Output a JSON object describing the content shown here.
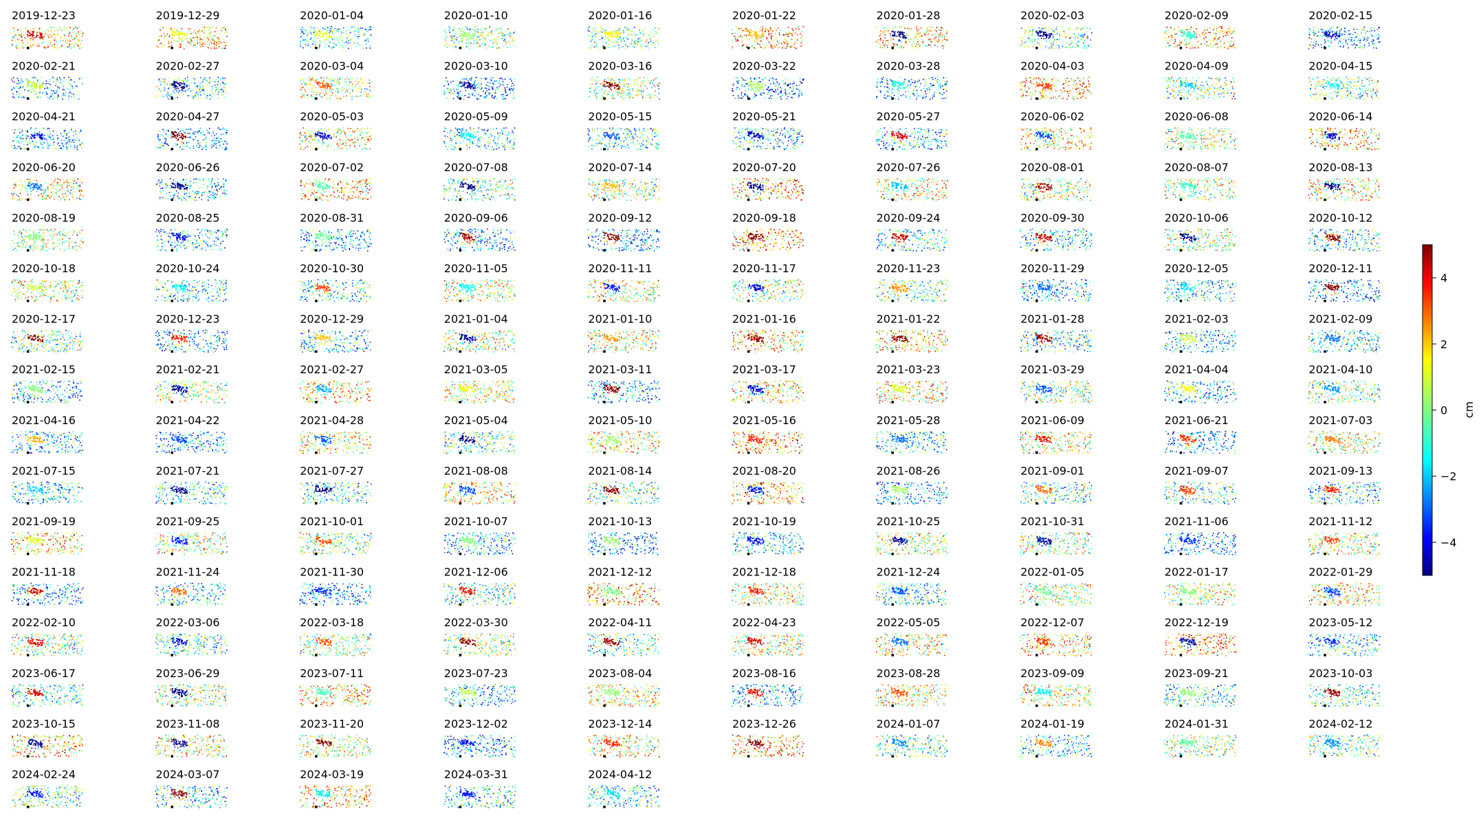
{
  "chart_data": {
    "type": "scatter",
    "layout": "small-multiples grid",
    "grid": {
      "columns": 10,
      "panels": 153
    },
    "axes_visible": false,
    "colormap": "jet",
    "panel_titles": [
      "2019-12-23",
      "2019-12-29",
      "2020-01-04",
      "2020-01-10",
      "2020-01-16",
      "2020-01-22",
      "2020-01-28",
      "2020-02-03",
      "2020-02-09",
      "2020-02-15",
      "2020-02-21",
      "2020-02-27",
      "2020-03-04",
      "2020-03-10",
      "2020-03-16",
      "2020-03-22",
      "2020-03-28",
      "2020-04-03",
      "2020-04-09",
      "2020-04-15",
      "2020-04-21",
      "2020-04-27",
      "2020-05-03",
      "2020-05-09",
      "2020-05-15",
      "2020-05-21",
      "2020-05-27",
      "2020-06-02",
      "2020-06-08",
      "2020-06-14",
      "2020-06-20",
      "2020-06-26",
      "2020-07-02",
      "2020-07-08",
      "2020-07-14",
      "2020-07-20",
      "2020-07-26",
      "2020-08-01",
      "2020-08-07",
      "2020-08-13",
      "2020-08-19",
      "2020-08-25",
      "2020-08-31",
      "2020-09-06",
      "2020-09-12",
      "2020-09-18",
      "2020-09-24",
      "2020-09-30",
      "2020-10-06",
      "2020-10-12",
      "2020-10-18",
      "2020-10-24",
      "2020-10-30",
      "2020-11-05",
      "2020-11-11",
      "2020-11-17",
      "2020-11-23",
      "2020-11-29",
      "2020-12-05",
      "2020-12-11",
      "2020-12-17",
      "2020-12-23",
      "2020-12-29",
      "2021-01-04",
      "2021-01-10",
      "2021-01-16",
      "2021-01-22",
      "2021-01-28",
      "2021-02-03",
      "2021-02-09",
      "2021-02-15",
      "2021-02-21",
      "2021-02-27",
      "2021-03-05",
      "2021-03-11",
      "2021-03-17",
      "2021-03-23",
      "2021-03-29",
      "2021-04-04",
      "2021-04-10",
      "2021-04-16",
      "2021-04-22",
      "2021-04-28",
      "2021-05-04",
      "2021-05-10",
      "2021-05-16",
      "2021-05-28",
      "2021-06-09",
      "2021-06-21",
      "2021-07-03",
      "2021-07-15",
      "2021-07-21",
      "2021-07-27",
      "2021-08-08",
      "2021-08-14",
      "2021-08-20",
      "2021-08-26",
      "2021-09-01",
      "2021-09-07",
      "2021-09-13",
      "2021-09-19",
      "2021-09-25",
      "2021-10-01",
      "2021-10-07",
      "2021-10-13",
      "2021-10-19",
      "2021-10-25",
      "2021-10-31",
      "2021-11-06",
      "2021-11-12",
      "2021-11-18",
      "2021-11-24",
      "2021-11-30",
      "2021-12-06",
      "2021-12-12",
      "2021-12-18",
      "2021-12-24",
      "2022-01-05",
      "2022-01-17",
      "2022-01-29",
      "2022-02-10",
      "2022-03-06",
      "2022-03-18",
      "2022-03-30",
      "2022-04-11",
      "2022-04-23",
      "2022-05-05",
      "2022-12-07",
      "2022-12-19",
      "2023-05-12",
      "2023-06-17",
      "2023-06-29",
      "2023-07-11",
      "2023-07-23",
      "2023-08-04",
      "2023-08-16",
      "2023-08-28",
      "2023-09-09",
      "2023-09-21",
      "2023-10-03",
      "2023-10-15",
      "2023-11-08",
      "2023-11-20",
      "2023-12-02",
      "2023-12-14",
      "2023-12-26",
      "2024-01-07",
      "2024-01-19",
      "2024-01-31",
      "2024-02-12",
      "2024-02-24",
      "2024-03-07",
      "2024-03-19",
      "2024-03-31",
      "2024-04-12"
    ],
    "colorbar": {
      "label": "cm",
      "vmin": -5,
      "vmax": 5,
      "ticks": [
        4,
        2,
        0,
        -2,
        -4
      ],
      "tick_labels": [
        "4",
        "2",
        "0",
        "−2",
        "−4"
      ]
    },
    "colormap_stops": [
      "#00007f",
      "#0000ff",
      "#007fff",
      "#00ffff",
      "#7fff7f",
      "#ffff00",
      "#ff7f00",
      "#ff0000",
      "#7f0000"
    ]
  }
}
